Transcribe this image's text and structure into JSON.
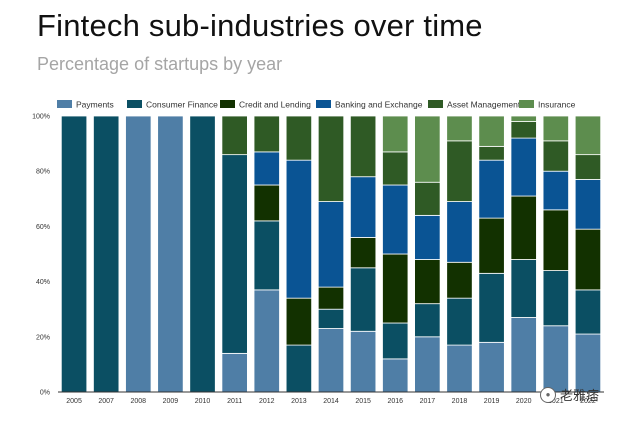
{
  "title": "Fintech sub-industries over time",
  "subtitle": "Percentage of startups by year",
  "watermark": {
    "text": "老雅痞",
    "icon": "wechat-icon"
  },
  "colors": {
    "Payments": "#4f7ea6",
    "Consumer Finance": "#0b4f63",
    "Credit and Lending": "#123100",
    "Banking and Exchange": "#0a5494",
    "Asset Management": "#2f5a25",
    "Insurance": "#5d8d4e",
    "axis": "#333333",
    "grid": "#dddddd"
  },
  "chart_data": {
    "type": "bar",
    "stacked": true,
    "title": "Fintech sub-industries over time",
    "subtitle": "Percentage of startups by year",
    "xlabel": "",
    "ylabel": "",
    "ylim": [
      0,
      100
    ],
    "y_ticks": [
      "0%",
      "20%",
      "40%",
      "60%",
      "80%",
      "100%"
    ],
    "legend_position": "top",
    "categories": [
      "2005",
      "2007",
      "2008",
      "2009",
      "2010",
      "2011",
      "2012",
      "2013",
      "2014",
      "2015",
      "2016",
      "2017",
      "2018",
      "2019",
      "2020",
      "2021",
      "2022"
    ],
    "series": [
      {
        "name": "Payments",
        "values": [
          0,
          0,
          100,
          100,
          0,
          14,
          37,
          0,
          23,
          22,
          12,
          20,
          17,
          18,
          27,
          24,
          21
        ]
      },
      {
        "name": "Consumer Finance",
        "values": [
          100,
          100,
          0,
          0,
          100,
          72,
          25,
          17,
          7,
          23,
          13,
          12,
          17,
          25,
          21,
          20,
          16
        ]
      },
      {
        "name": "Credit and Lending",
        "values": [
          0,
          0,
          0,
          0,
          0,
          0,
          13,
          17,
          8,
          11,
          25,
          16,
          13,
          20,
          23,
          22,
          22
        ]
      },
      {
        "name": "Banking and Exchange",
        "values": [
          0,
          0,
          0,
          0,
          0,
          0,
          12,
          50,
          31,
          22,
          25,
          16,
          22,
          21,
          21,
          14,
          18
        ]
      },
      {
        "name": "Asset Management",
        "values": [
          0,
          0,
          0,
          0,
          0,
          14,
          13,
          16,
          31,
          22,
          12,
          12,
          22,
          5,
          6,
          11,
          9
        ]
      },
      {
        "name": "Insurance",
        "values": [
          0,
          0,
          0,
          0,
          0,
          0,
          0,
          0,
          0,
          0,
          13,
          24,
          9,
          11,
          2,
          9,
          14
        ]
      }
    ]
  }
}
